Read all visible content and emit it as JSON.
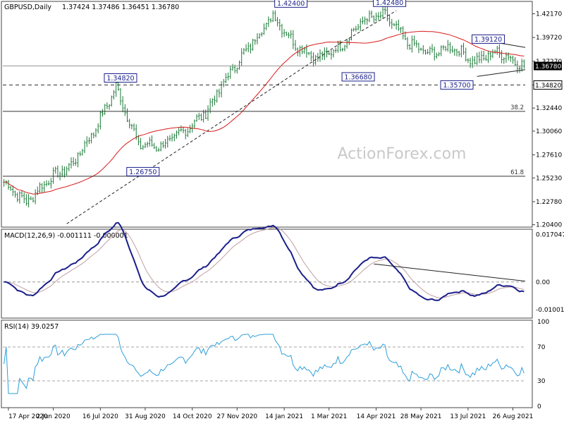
{
  "header": {
    "symbol": "GBPUSD,Daily",
    "ohlc": "1.37424 1.37486 1.36451 1.36780"
  },
  "watermark": "ActionForex.com",
  "colors": {
    "price": "#1a7a36",
    "ma": "#d81b1b",
    "macd": "#1b1f8a",
    "signal": "#c0a0a0",
    "rsi": "#2e9fd8",
    "grid": "#444444",
    "bg": "#ffffff"
  },
  "chart_data": [
    {
      "type": "candlestick",
      "name": "price",
      "ylim": [
        1.203,
        1.433
      ],
      "y_ticks": [
        "1.42170",
        "1.39720",
        "1.37270",
        "1.34820",
        "1.32440",
        "1.30060",
        "1.27610",
        "1.25230",
        "1.22780",
        "1.20400"
      ],
      "x_ticks": [
        "17 Apr 2020",
        "2 Jun 2020",
        "16 Jul 2020",
        "31 Aug 2020",
        "14 Oct 2020",
        "27 Nov 2020",
        "14 Jan 2021",
        "1 Mar 2021",
        "14 Apr 2021",
        "28 May 2021",
        "13 Jul 2021",
        "26 Aug 2021"
      ],
      "current_price": "1.36780",
      "level_label": "1.34820",
      "fib_labels": [
        {
          "label": "38.2",
          "value": 1.321
        },
        {
          "label": "61.8",
          "value": 1.254
        }
      ],
      "annotations": [
        {
          "text": "1.42400",
          "value": 1.424
        },
        {
          "text": "1.42480",
          "value": 1.4248
        },
        {
          "text": "1.34820",
          "value": 1.3482
        },
        {
          "text": "1.39120",
          "value": 1.3912
        },
        {
          "text": "1.36680",
          "value": 1.3668
        },
        {
          "text": "1.35700",
          "value": 1.357
        },
        {
          "text": "1.26750",
          "value": 1.2675
        }
      ],
      "close_anchors": [
        [
          0,
          1.248
        ],
        [
          10,
          1.227
        ],
        [
          20,
          1.251
        ],
        [
          30,
          1.265
        ],
        [
          40,
          1.3
        ],
        [
          50,
          1.346
        ],
        [
          60,
          1.287
        ],
        [
          70,
          1.285
        ],
        [
          80,
          1.3
        ],
        [
          90,
          1.32
        ],
        [
          100,
          1.358
        ],
        [
          110,
          1.39
        ],
        [
          120,
          1.42
        ],
        [
          130,
          1.39
        ],
        [
          140,
          1.375
        ],
        [
          150,
          1.388
        ],
        [
          160,
          1.415
        ],
        [
          170,
          1.42
        ],
        [
          180,
          1.392
        ],
        [
          190,
          1.38
        ],
        [
          200,
          1.388
        ],
        [
          210,
          1.372
        ],
        [
          220,
          1.383
        ],
        [
          232,
          1.3678
        ]
      ]
    },
    {
      "type": "line",
      "name": "MACD(12,26,9)",
      "label": "MACD(12,26,9) -0.001111 -0.000001",
      "ylim": [
        -0.0125,
        0.0185
      ],
      "y_ticks": [
        "0.017047",
        "0.00",
        "-0.010013"
      ],
      "right_value": "0.00"
    },
    {
      "type": "line",
      "name": "RSI(14)",
      "label": "RSI(14) 39.0257",
      "ylim": [
        0,
        100
      ],
      "y_ticks": [
        "100",
        "70",
        "30",
        "0"
      ]
    }
  ]
}
